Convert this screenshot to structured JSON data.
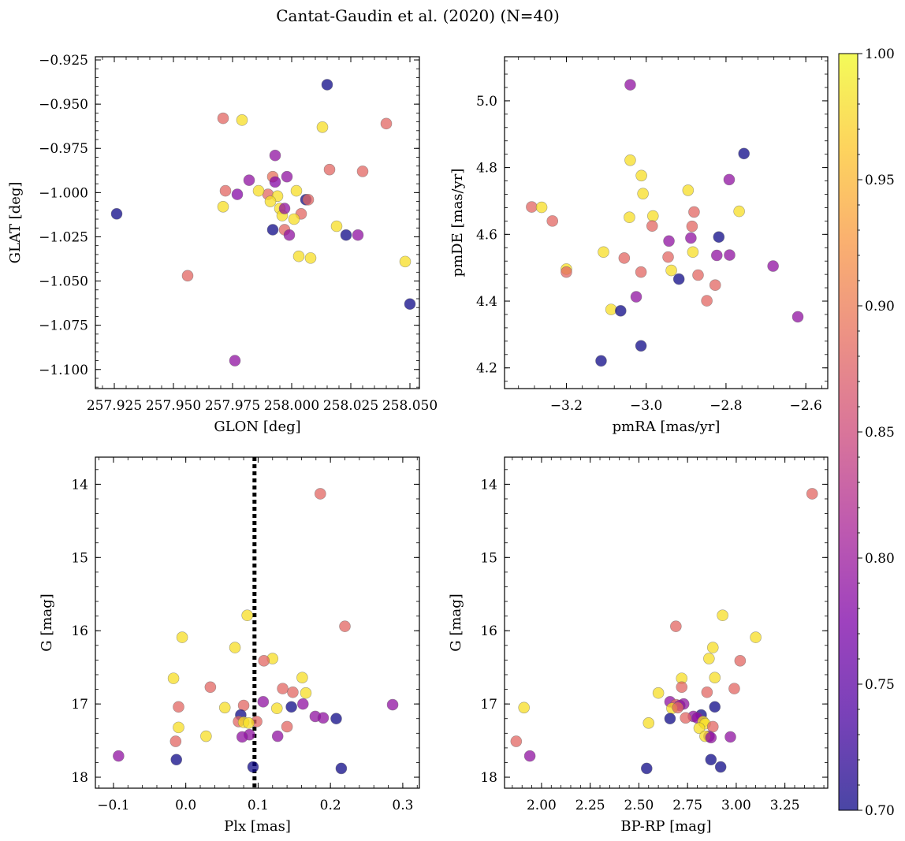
{
  "chart_data": {
    "type": "scatter",
    "title": "Cantat-Gaudin et al. (2020) (N=40)",
    "colorbar": {
      "cmap": "plasma",
      "range": [
        0.7,
        1.0
      ],
      "ticks": [
        0.7,
        0.75,
        0.8,
        0.85,
        0.9,
        0.95,
        1.0
      ],
      "tick_labels": [
        "0.70",
        "0.75",
        "0.80",
        "0.85",
        "0.90",
        "0.95",
        "1.00"
      ]
    },
    "panels": [
      {
        "id": "p1",
        "xlabel": "GLON [deg]",
        "ylabel": "GLAT [deg]",
        "xlim": [
          257.917,
          258.054
        ],
        "ylim": [
          -1.1108,
          -0.9232
        ],
        "invert_y": false,
        "xticks": [
          257.925,
          257.95,
          257.975,
          258.0,
          258.025,
          258.05
        ],
        "xtick_labels": [
          "257.925",
          "257.950",
          "257.975",
          "258.000",
          "258.025",
          "258.050"
        ],
        "yticks": [
          -0.925,
          -0.95,
          -0.975,
          -1.0,
          -1.025,
          -1.05,
          -1.075,
          -1.1
        ],
        "ytick_labels": [
          "−0.925",
          "−0.950",
          "−0.975",
          "−1.000",
          "−1.025",
          "−1.050",
          "−1.075",
          "−1.100"
        ],
        "points": [
          {
            "x": 258.015,
            "y": -0.939,
            "c": 0.7
          },
          {
            "x": 257.971,
            "y": -0.958,
            "c": 0.88
          },
          {
            "x": 257.979,
            "y": -0.959,
            "c": 0.98
          },
          {
            "x": 258.013,
            "y": -0.963,
            "c": 0.98
          },
          {
            "x": 258.04,
            "y": -0.961,
            "c": 0.88
          },
          {
            "x": 257.993,
            "y": -0.979,
            "c": 0.79
          },
          {
            "x": 258.016,
            "y": -0.987,
            "c": 0.88
          },
          {
            "x": 258.03,
            "y": -0.988,
            "c": 0.88
          },
          {
            "x": 257.982,
            "y": -0.993,
            "c": 0.79
          },
          {
            "x": 257.992,
            "y": -0.991,
            "c": 0.89
          },
          {
            "x": 257.998,
            "y": -0.991,
            "c": 0.79
          },
          {
            "x": 257.993,
            "y": -0.994,
            "c": 0.78
          },
          {
            "x": 257.972,
            "y": -0.999,
            "c": 0.88
          },
          {
            "x": 257.977,
            "y": -1.001,
            "c": 0.78
          },
          {
            "x": 257.99,
            "y": -1.001,
            "c": 0.88
          },
          {
            "x": 257.994,
            "y": -1.002,
            "c": 0.98
          },
          {
            "x": 258.002,
            "y": -0.999,
            "c": 0.98
          },
          {
            "x": 257.991,
            "y": -1.005,
            "c": 0.98
          },
          {
            "x": 258.006,
            "y": -1.004,
            "c": 0.7
          },
          {
            "x": 258.007,
            "y": -1.004,
            "c": 0.88
          },
          {
            "x": 257.971,
            "y": -1.008,
            "c": 0.98
          },
          {
            "x": 257.995,
            "y": -1.009,
            "c": 0.98
          },
          {
            "x": 257.996,
            "y": -1.013,
            "c": 0.98
          },
          {
            "x": 257.997,
            "y": -1.009,
            "c": 0.79
          },
          {
            "x": 258.004,
            "y": -1.012,
            "c": 0.88
          },
          {
            "x": 257.926,
            "y": -1.012,
            "c": 0.7
          },
          {
            "x": 258.019,
            "y": -1.019,
            "c": 0.98
          },
          {
            "x": 257.992,
            "y": -1.021,
            "c": 0.7
          },
          {
            "x": 257.997,
            "y": -1.021,
            "c": 0.88
          },
          {
            "x": 257.999,
            "y": -1.024,
            "c": 0.79
          },
          {
            "x": 258.023,
            "y": -1.024,
            "c": 0.7
          },
          {
            "x": 258.028,
            "y": -1.024,
            "c": 0.79
          },
          {
            "x": 258.003,
            "y": -1.036,
            "c": 0.98
          },
          {
            "x": 258.008,
            "y": -1.037,
            "c": 0.98
          },
          {
            "x": 258.048,
            "y": -1.039,
            "c": 0.98
          },
          {
            "x": 257.956,
            "y": -1.047,
            "c": 0.88
          },
          {
            "x": 258.05,
            "y": -1.063,
            "c": 0.7
          },
          {
            "x": 257.976,
            "y": -1.095,
            "c": 0.79
          },
          {
            "x": 257.986,
            "y": -0.999,
            "c": 0.98
          },
          {
            "x": 258.001,
            "y": -1.015,
            "c": 0.98
          }
        ]
      },
      {
        "id": "p2",
        "xlabel": "pmRA [mas/yr]",
        "ylabel": "pmDE [mas/yr]",
        "xlim": [
          -3.355,
          -2.545
        ],
        "ylim": [
          4.138,
          5.132
        ],
        "invert_y": false,
        "xticks": [
          -3.2,
          -3.0,
          -2.8,
          -2.6
        ],
        "xtick_labels": [
          "−3.2",
          "−3.0",
          "−2.8",
          "−2.6"
        ],
        "yticks": [
          4.2,
          4.4,
          4.6,
          4.8,
          5.0
        ],
        "ytick_labels": [
          "4.2",
          "4.4",
          "4.6",
          "4.8",
          "5.0"
        ],
        "points": [
          {
            "x": -3.04,
            "y": 5.048,
            "c": 0.79
          },
          {
            "x": -2.755,
            "y": 4.842,
            "c": 0.7
          },
          {
            "x": -3.04,
            "y": 4.822,
            "c": 0.98
          },
          {
            "x": -3.012,
            "y": 4.776,
            "c": 0.98
          },
          {
            "x": -2.792,
            "y": 4.764,
            "c": 0.79
          },
          {
            "x": -2.895,
            "y": 4.732,
            "c": 0.98
          },
          {
            "x": -3.008,
            "y": 4.722,
            "c": 0.98
          },
          {
            "x": -3.287,
            "y": 4.682,
            "c": 0.88
          },
          {
            "x": -3.262,
            "y": 4.681,
            "c": 0.98
          },
          {
            "x": -2.88,
            "y": 4.667,
            "c": 0.88
          },
          {
            "x": -2.767,
            "y": 4.669,
            "c": 0.98
          },
          {
            "x": -2.983,
            "y": 4.655,
            "c": 0.98
          },
          {
            "x": -3.042,
            "y": 4.651,
            "c": 0.98
          },
          {
            "x": -3.235,
            "y": 4.64,
            "c": 0.88
          },
          {
            "x": -2.985,
            "y": 4.625,
            "c": 0.88
          },
          {
            "x": -2.885,
            "y": 4.624,
            "c": 0.88
          },
          {
            "x": -2.818,
            "y": 4.592,
            "c": 0.7
          },
          {
            "x": -2.888,
            "y": 4.589,
            "c": 0.79
          },
          {
            "x": -2.943,
            "y": 4.58,
            "c": 0.79
          },
          {
            "x": -3.107,
            "y": 4.547,
            "c": 0.98
          },
          {
            "x": -2.883,
            "y": 4.547,
            "c": 0.98
          },
          {
            "x": -2.823,
            "y": 4.537,
            "c": 0.79
          },
          {
            "x": -2.791,
            "y": 4.538,
            "c": 0.79
          },
          {
            "x": -2.945,
            "y": 4.532,
            "c": 0.88
          },
          {
            "x": -3.055,
            "y": 4.529,
            "c": 0.88
          },
          {
            "x": -2.682,
            "y": 4.505,
            "c": 0.79
          },
          {
            "x": -3.2,
            "y": 4.496,
            "c": 0.98
          },
          {
            "x": -3.2,
            "y": 4.487,
            "c": 0.88
          },
          {
            "x": -2.937,
            "y": 4.492,
            "c": 0.98
          },
          {
            "x": -3.013,
            "y": 4.487,
            "c": 0.88
          },
          {
            "x": -2.87,
            "y": 4.478,
            "c": 0.88
          },
          {
            "x": -2.918,
            "y": 4.466,
            "c": 0.7
          },
          {
            "x": -2.827,
            "y": 4.448,
            "c": 0.88
          },
          {
            "x": -3.025,
            "y": 4.413,
            "c": 0.79
          },
          {
            "x": -2.848,
            "y": 4.401,
            "c": 0.88
          },
          {
            "x": -3.088,
            "y": 4.375,
            "c": 0.98
          },
          {
            "x": -3.064,
            "y": 4.371,
            "c": 0.7
          },
          {
            "x": -2.62,
            "y": 4.353,
            "c": 0.79
          },
          {
            "x": -3.013,
            "y": 4.266,
            "c": 0.7
          },
          {
            "x": -3.113,
            "y": 4.221,
            "c": 0.7
          }
        ]
      },
      {
        "id": "p3",
        "xlabel": "Plx [mas]",
        "ylabel": "G [mag]",
        "xlim": [
          -0.125,
          0.323
        ],
        "ylim": [
          13.63,
          18.15
        ],
        "invert_y": true,
        "vline": 0.095,
        "xticks": [
          -0.1,
          0.0,
          0.1,
          0.2,
          0.3
        ],
        "xtick_labels": [
          "−0.1",
          "0.0",
          "0.1",
          "0.2",
          "0.3"
        ],
        "yticks": [
          14,
          15,
          16,
          17,
          18
        ],
        "ytick_labels": [
          "14",
          "15",
          "16",
          "17",
          "18"
        ],
        "points": [
          {
            "x": 0.186,
            "y": 14.13,
            "c": 0.88
          },
          {
            "x": 0.085,
            "y": 15.79,
            "c": 0.98
          },
          {
            "x": 0.22,
            "y": 15.94,
            "c": 0.88
          },
          {
            "x": -0.005,
            "y": 16.09,
            "c": 0.98
          },
          {
            "x": 0.068,
            "y": 16.23,
            "c": 0.98
          },
          {
            "x": 0.12,
            "y": 16.38,
            "c": 0.98
          },
          {
            "x": 0.108,
            "y": 16.41,
            "c": 0.88
          },
          {
            "x": 0.161,
            "y": 16.64,
            "c": 0.98
          },
          {
            "x": -0.017,
            "y": 16.65,
            "c": 0.98
          },
          {
            "x": 0.034,
            "y": 16.77,
            "c": 0.88
          },
          {
            "x": 0.134,
            "y": 16.79,
            "c": 0.88
          },
          {
            "x": 0.148,
            "y": 16.84,
            "c": 0.88
          },
          {
            "x": 0.166,
            "y": 16.85,
            "c": 0.98
          },
          {
            "x": 0.107,
            "y": 16.97,
            "c": 0.79
          },
          {
            "x": 0.162,
            "y": 17.0,
            "c": 0.79
          },
          {
            "x": 0.286,
            "y": 17.01,
            "c": 0.79
          },
          {
            "x": 0.08,
            "y": 17.02,
            "c": 0.88
          },
          {
            "x": -0.01,
            "y": 17.04,
            "c": 0.88
          },
          {
            "x": 0.146,
            "y": 17.04,
            "c": 0.7
          },
          {
            "x": 0.054,
            "y": 17.05,
            "c": 0.98
          },
          {
            "x": 0.126,
            "y": 17.06,
            "c": 0.98
          },
          {
            "x": 0.076,
            "y": 17.15,
            "c": 0.7
          },
          {
            "x": 0.179,
            "y": 17.17,
            "c": 0.79
          },
          {
            "x": 0.19,
            "y": 17.19,
            "c": 0.79
          },
          {
            "x": 0.208,
            "y": 17.2,
            "c": 0.7
          },
          {
            "x": 0.073,
            "y": 17.24,
            "c": 0.88
          },
          {
            "x": 0.098,
            "y": 17.24,
            "c": 0.88
          },
          {
            "x": 0.08,
            "y": 17.25,
            "c": 0.98
          },
          {
            "x": 0.087,
            "y": 17.26,
            "c": 0.98
          },
          {
            "x": 0.14,
            "y": 17.31,
            "c": 0.88
          },
          {
            "x": -0.01,
            "y": 17.32,
            "c": 0.98
          },
          {
            "x": 0.088,
            "y": 17.42,
            "c": 0.79
          },
          {
            "x": 0.028,
            "y": 17.44,
            "c": 0.98
          },
          {
            "x": 0.127,
            "y": 17.44,
            "c": 0.79
          },
          {
            "x": 0.078,
            "y": 17.45,
            "c": 0.79
          },
          {
            "x": -0.014,
            "y": 17.51,
            "c": 0.88
          },
          {
            "x": -0.093,
            "y": 17.71,
            "c": 0.79
          },
          {
            "x": -0.013,
            "y": 17.76,
            "c": 0.7
          },
          {
            "x": 0.093,
            "y": 17.86,
            "c": 0.7
          },
          {
            "x": 0.215,
            "y": 17.88,
            "c": 0.7
          }
        ]
      },
      {
        "id": "p4",
        "xlabel": "BP-RP [mag]",
        "ylabel": "G [mag]",
        "xlim": [
          1.81,
          3.47
        ],
        "ylim": [
          13.63,
          18.15
        ],
        "invert_y": true,
        "xticks": [
          2.0,
          2.25,
          2.5,
          2.75,
          3.0,
          3.25
        ],
        "xtick_labels": [
          "2.00",
          "2.25",
          "2.50",
          "2.75",
          "3.00",
          "3.25"
        ],
        "yticks": [
          14,
          15,
          16,
          17,
          18
        ],
        "ytick_labels": [
          "14",
          "15",
          "16",
          "17",
          "18"
        ],
        "points": [
          {
            "x": 3.39,
            "y": 14.13,
            "c": 0.88
          },
          {
            "x": 2.93,
            "y": 15.79,
            "c": 0.98
          },
          {
            "x": 2.69,
            "y": 15.94,
            "c": 0.88
          },
          {
            "x": 3.1,
            "y": 16.09,
            "c": 0.98
          },
          {
            "x": 2.88,
            "y": 16.23,
            "c": 0.98
          },
          {
            "x": 2.86,
            "y": 16.38,
            "c": 0.98
          },
          {
            "x": 3.02,
            "y": 16.41,
            "c": 0.88
          },
          {
            "x": 2.89,
            "y": 16.64,
            "c": 0.98
          },
          {
            "x": 2.72,
            "y": 16.65,
            "c": 0.98
          },
          {
            "x": 2.72,
            "y": 16.77,
            "c": 0.88
          },
          {
            "x": 2.99,
            "y": 16.79,
            "c": 0.88
          },
          {
            "x": 2.85,
            "y": 16.84,
            "c": 0.88
          },
          {
            "x": 2.6,
            "y": 16.85,
            "c": 0.98
          },
          {
            "x": 2.66,
            "y": 16.97,
            "c": 0.79
          },
          {
            "x": 2.73,
            "y": 17.0,
            "c": 0.79
          },
          {
            "x": 2.69,
            "y": 17.01,
            "c": 0.88
          },
          {
            "x": 2.71,
            "y": 17.02,
            "c": 0.79
          },
          {
            "x": 2.89,
            "y": 17.04,
            "c": 0.7
          },
          {
            "x": 1.91,
            "y": 17.05,
            "c": 0.98
          },
          {
            "x": 2.67,
            "y": 17.06,
            "c": 0.98
          },
          {
            "x": 2.82,
            "y": 17.15,
            "c": 0.7
          },
          {
            "x": 2.78,
            "y": 17.17,
            "c": 0.79
          },
          {
            "x": 2.8,
            "y": 17.19,
            "c": 0.79
          },
          {
            "x": 2.66,
            "y": 17.2,
            "c": 0.7
          },
          {
            "x": 2.74,
            "y": 17.19,
            "c": 0.88
          },
          {
            "x": 2.83,
            "y": 17.24,
            "c": 0.98
          },
          {
            "x": 2.55,
            "y": 17.26,
            "c": 0.98
          },
          {
            "x": 2.84,
            "y": 17.27,
            "c": 0.98
          },
          {
            "x": 2.88,
            "y": 17.31,
            "c": 0.88
          },
          {
            "x": 2.81,
            "y": 17.33,
            "c": 0.98
          },
          {
            "x": 2.86,
            "y": 17.44,
            "c": 0.79
          },
          {
            "x": 2.84,
            "y": 17.44,
            "c": 0.98
          },
          {
            "x": 2.97,
            "y": 17.45,
            "c": 0.79
          },
          {
            "x": 2.87,
            "y": 17.46,
            "c": 0.79
          },
          {
            "x": 1.87,
            "y": 17.51,
            "c": 0.88
          },
          {
            "x": 1.94,
            "y": 17.71,
            "c": 0.79
          },
          {
            "x": 2.87,
            "y": 17.76,
            "c": 0.7
          },
          {
            "x": 2.92,
            "y": 17.86,
            "c": 0.7
          },
          {
            "x": 2.54,
            "y": 17.88,
            "c": 0.7
          },
          {
            "x": 2.7,
            "y": 17.05,
            "c": 0.88
          }
        ]
      }
    ]
  }
}
